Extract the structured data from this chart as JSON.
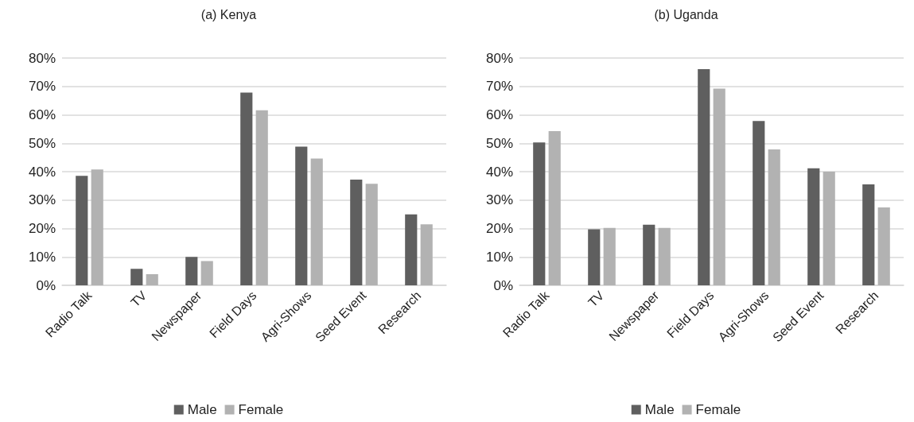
{
  "chart_data": [
    {
      "type": "bar",
      "title": "(a) Kenya",
      "categories": [
        "Radio Talk",
        "TV",
        "Newspaper",
        "Field Days",
        "Agri-Shows",
        "Seed Event",
        "Research"
      ],
      "series": [
        {
          "name": "Male",
          "color": "#5f5f5f",
          "values": [
            38.5,
            5.8,
            10.0,
            67.8,
            48.8,
            37.2,
            25.0
          ]
        },
        {
          "name": "Female",
          "color": "#b2b2b2",
          "values": [
            40.8,
            3.9,
            8.5,
            61.6,
            44.6,
            35.7,
            21.5
          ]
        }
      ],
      "ylim": [
        0,
        80
      ],
      "yticks": [
        {
          "value": 0,
          "label": "0%"
        },
        {
          "value": 10,
          "label": "10%"
        },
        {
          "value": 20,
          "label": "20%"
        },
        {
          "value": 30,
          "label": "30%"
        },
        {
          "value": 40,
          "label": "40%"
        },
        {
          "value": 50,
          "label": "50%"
        },
        {
          "value": 60,
          "label": "60%"
        },
        {
          "value": 70,
          "label": "70%"
        },
        {
          "value": 80,
          "label": "80%"
        }
      ],
      "grid": "y",
      "legend": "bottom"
    },
    {
      "type": "bar",
      "title": "(b) Uganda",
      "categories": [
        "Radio Talk",
        "TV",
        "Newspaper",
        "Field Days",
        "Agri-Shows",
        "Seed Event",
        "Research"
      ],
      "series": [
        {
          "name": "Male",
          "color": "#5f5f5f",
          "values": [
            50.3,
            19.7,
            21.3,
            76.1,
            57.8,
            41.2,
            35.5
          ]
        },
        {
          "name": "Female",
          "color": "#b2b2b2",
          "values": [
            54.3,
            20.2,
            20.2,
            69.2,
            47.8,
            40.0,
            27.4
          ]
        }
      ],
      "ylim": [
        0,
        80
      ],
      "yticks": [
        {
          "value": 0,
          "label": "0%"
        },
        {
          "value": 10,
          "label": "10%"
        },
        {
          "value": 20,
          "label": "20%"
        },
        {
          "value": 30,
          "label": "30%"
        },
        {
          "value": 40,
          "label": "40%"
        },
        {
          "value": 50,
          "label": "50%"
        },
        {
          "value": 60,
          "label": "60%"
        },
        {
          "value": 70,
          "label": "70%"
        },
        {
          "value": 80,
          "label": "80%"
        }
      ],
      "grid": "y",
      "legend": "bottom"
    }
  ]
}
